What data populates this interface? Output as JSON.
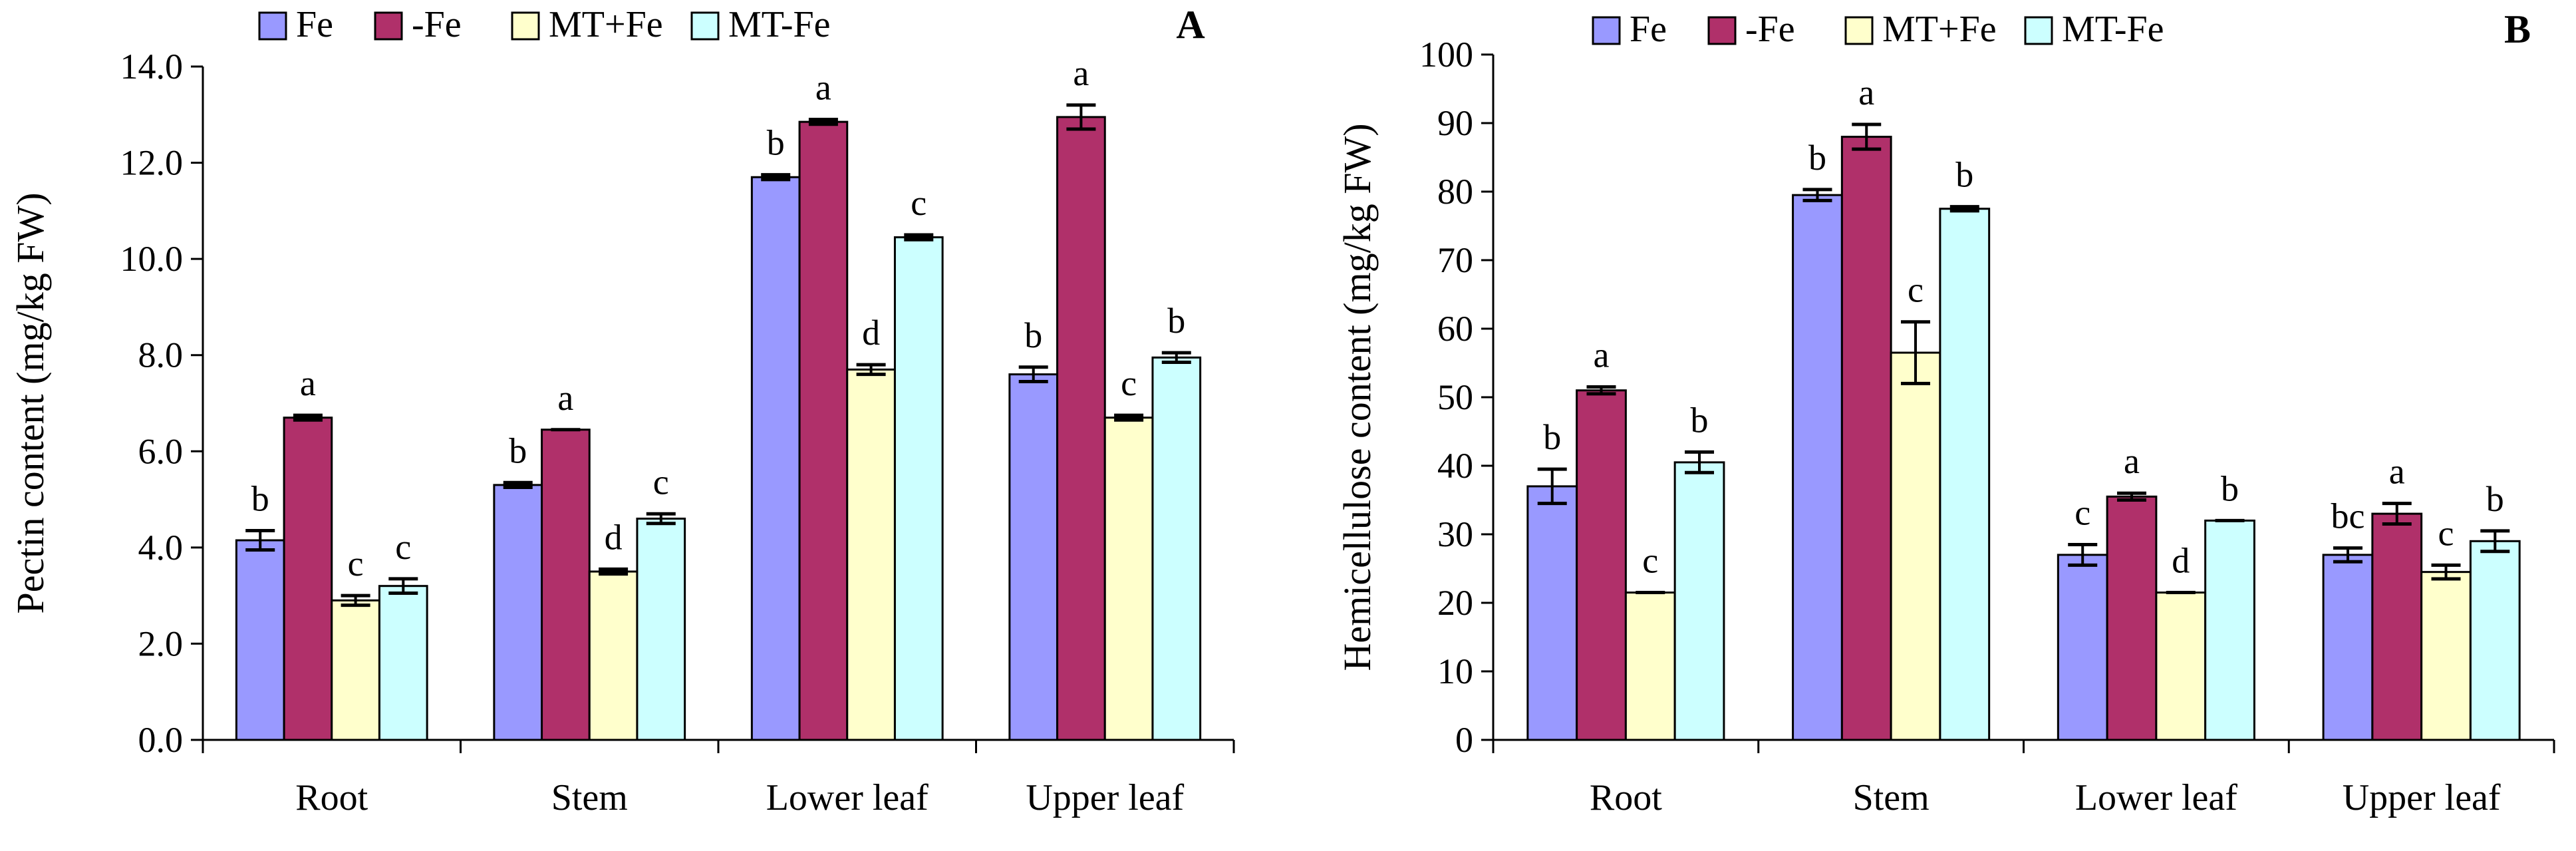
{
  "chart_data": [
    {
      "type": "bar",
      "panel": "A",
      "ylabel": "Pectin content (mg/kg FW)",
      "xlabel": "",
      "ylim": [
        0,
        14
      ],
      "yticks": [
        "0.0",
        "2.0",
        "4.0",
        "6.0",
        "8.0",
        "10.0",
        "12.0",
        "14.0"
      ],
      "categories": [
        "Root",
        "Stem",
        "Lower leaf",
        "Upper leaf"
      ],
      "grid": false,
      "legend_position": "top",
      "series": [
        {
          "name": "Fe",
          "values": [
            4.15,
            5.3,
            11.7,
            7.6
          ],
          "errors": [
            0.2,
            0.05,
            0.05,
            0.15
          ],
          "labels": [
            "b",
            "b",
            "b",
            "b"
          ]
        },
        {
          "name": "-Fe",
          "values": [
            6.7,
            6.45,
            12.85,
            12.95
          ],
          "errors": [
            0.05,
            0.0,
            0.05,
            0.25
          ],
          "labels": [
            "a",
            "a",
            "a",
            "a"
          ]
        },
        {
          "name": "MT+Fe",
          "values": [
            2.9,
            3.5,
            7.7,
            6.7
          ],
          "errors": [
            0.1,
            0.05,
            0.1,
            0.05
          ],
          "labels": [
            "c",
            "d",
            "d",
            "c"
          ]
        },
        {
          "name": "MT-Fe",
          "values": [
            3.2,
            4.6,
            10.45,
            7.95
          ],
          "errors": [
            0.15,
            0.1,
            0.05,
            0.1
          ],
          "labels": [
            "c",
            "c",
            "c",
            "b"
          ]
        }
      ]
    },
    {
      "type": "bar",
      "panel": "B",
      "ylabel": "Hemicellulose content (mg/kg FW)",
      "xlabel": "",
      "ylim": [
        0,
        100
      ],
      "yticks": [
        "0",
        "10",
        "20",
        "30",
        "40",
        "50",
        "60",
        "70",
        "80",
        "90",
        "100"
      ],
      "categories": [
        "Root",
        "Stem",
        "Lower leaf",
        "Upper leaf"
      ],
      "grid": false,
      "legend_position": "top",
      "series": [
        {
          "name": "Fe",
          "values": [
            37,
            79.5,
            27,
            27
          ],
          "errors": [
            2.5,
            0.8,
            1.5,
            1.0
          ],
          "labels": [
            "b",
            "b",
            "c",
            "bc"
          ]
        },
        {
          "name": "-Fe",
          "values": [
            51,
            88,
            35.5,
            33
          ],
          "errors": [
            0.5,
            1.8,
            0.5,
            1.5
          ],
          "labels": [
            "a",
            "a",
            "a",
            "a"
          ]
        },
        {
          "name": "MT+Fe",
          "values": [
            21.5,
            56.5,
            21.5,
            24.5
          ],
          "errors": [
            0.0,
            4.5,
            0.0,
            1.0
          ],
          "labels": [
            "c",
            "c",
            "d",
            "c"
          ]
        },
        {
          "name": "MT-Fe",
          "values": [
            40.5,
            77.5,
            32,
            29
          ],
          "errors": [
            1.5,
            0.3,
            0.0,
            1.5
          ],
          "labels": [
            "b",
            "b",
            "b",
            "b"
          ]
        }
      ]
    }
  ],
  "style": {
    "series_colors": [
      "#9999ff",
      "#b0306a",
      "#ffffcc",
      "#ccffff"
    ],
    "axis_color": "#000000"
  }
}
